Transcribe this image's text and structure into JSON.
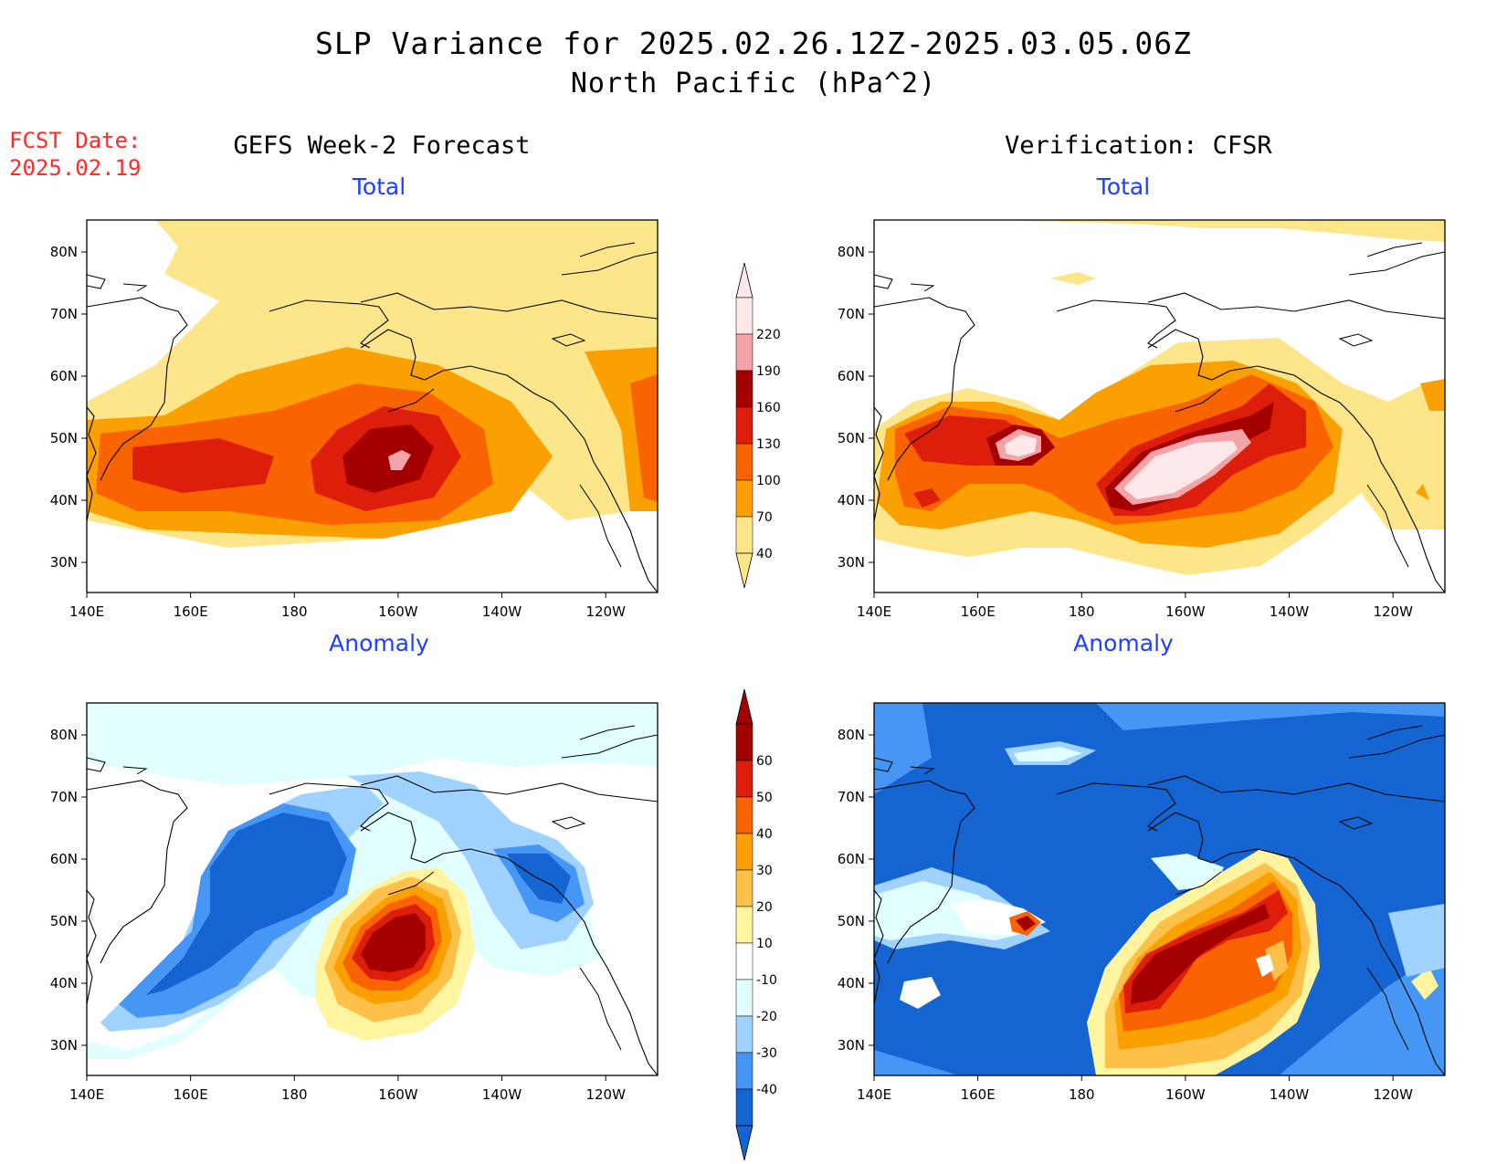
{
  "title_line1": "SLP Variance for 2025.02.26.12Z-2025.03.05.06Z",
  "title_line2": "North Pacific (hPa^2)",
  "fcst_label": "FCST Date:",
  "fcst_date": "2025.02.19",
  "left_header": "GEFS Week-2 Forecast",
  "right_header": "Verification: CFSR",
  "panels": {
    "top_left": "Total",
    "top_right": "Total",
    "bottom_left": "Anomaly",
    "bottom_right": "Anomaly"
  },
  "axes": {
    "x_ticks": [
      "140E",
      "160E",
      "180",
      "160W",
      "140W",
      "120W"
    ],
    "y_ticks": [
      "80N",
      "70N",
      "60N",
      "50N",
      "40N",
      "30N"
    ]
  },
  "colorbars": {
    "total": {
      "labels": [
        "220",
        "190",
        "160",
        "130",
        "100",
        "70",
        "40"
      ],
      "colors": [
        "#fce8e8",
        "#f4a3a8",
        "#a50000",
        "#dc1e0a",
        "#fa6400",
        "#faa000",
        "#fde68a"
      ]
    },
    "anomaly": {
      "labels": [
        "60",
        "50",
        "40",
        "30",
        "20",
        "10",
        "-10",
        "-20",
        "-30",
        "-40"
      ],
      "colors": [
        "#a50000",
        "#dc1e0a",
        "#fa6400",
        "#faa000",
        "#fdc048",
        "#fff4a0",
        "#ffffff",
        "#e1ffff",
        "#a0d2ff",
        "#4696f5",
        "#1464d2"
      ]
    }
  },
  "chart_data": [
    {
      "type": "heatmap",
      "panel": "GEFS Week-2 Forecast - Total",
      "lon_range": [
        "140E",
        "110W"
      ],
      "lat_range": [
        "25N",
        "85N"
      ],
      "levels": [
        40,
        70,
        100,
        130,
        160,
        190,
        220
      ],
      "features": [
        {
          "center": [
            "165E",
            "46N"
          ],
          "max_level": 130
        },
        {
          "center": [
            "160W",
            "46N"
          ],
          "max_level": 190
        }
      ]
    },
    {
      "type": "heatmap",
      "panel": "Verification: CFSR - Total",
      "lon_range": [
        "140E",
        "110W"
      ],
      "lat_range": [
        "25N",
        "85N"
      ],
      "levels": [
        40,
        70,
        100,
        130,
        160,
        190,
        220
      ],
      "features": [
        {
          "center": [
            "170E",
            "49N"
          ],
          "max_level": 220
        },
        {
          "center": [
            "160W",
            "47N"
          ],
          "max_level": 220
        }
      ]
    },
    {
      "type": "heatmap",
      "panel": "GEFS Week-2 Forecast - Anomaly",
      "lon_range": [
        "140E",
        "110W"
      ],
      "lat_range": [
        "25N",
        "85N"
      ],
      "levels": [
        -40,
        -30,
        -20,
        -10,
        10,
        20,
        30,
        40,
        50,
        60
      ],
      "features": [
        {
          "center": [
            "175E",
            "55N"
          ],
          "min_level": -40
        },
        {
          "center": [
            "160W",
            "45N"
          ],
          "max_level": 60
        },
        {
          "center": [
            "135W",
            "55N"
          ],
          "min_level": -40
        }
      ]
    },
    {
      "type": "heatmap",
      "panel": "Verification: CFSR - Anomaly",
      "lon_range": [
        "140E",
        "110W"
      ],
      "lat_range": [
        "25N",
        "85N"
      ],
      "levels": [
        -40,
        -30,
        -20,
        -10,
        10,
        20,
        30,
        40,
        50,
        60
      ],
      "features": [
        {
          "center": [
            "170E",
            "50N"
          ],
          "max_level": 60
        },
        {
          "center": [
            "155W",
            "47N"
          ],
          "max_level": 60
        },
        {
          "center": [
            "180",
            "70N"
          ],
          "min_level": -40
        }
      ]
    }
  ]
}
